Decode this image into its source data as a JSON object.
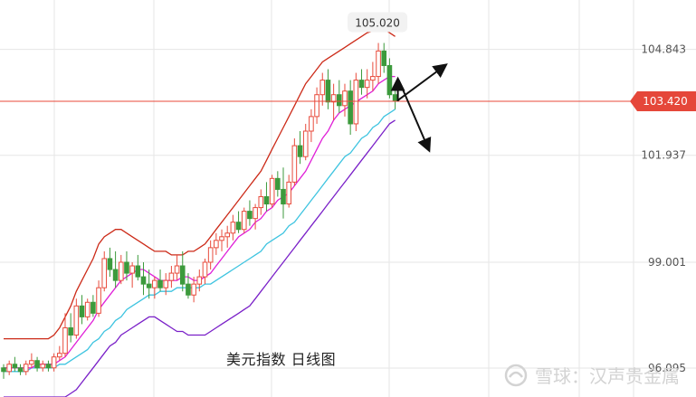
{
  "caption": "美元指数  日线图",
  "watermark_text": "雪球：汉声贵金属",
  "colors": {
    "up": "#e84b3c",
    "down": "#3c9a3c",
    "price_line": "#e8483a",
    "price_tag_bg": "#e5473a",
    "ma_fast": "#e020d8",
    "ma_slow": "#3ec4e0",
    "boll_upper": "#cc2a18",
    "boll_lower": "#7a20c8",
    "grid": "#e6e6e6",
    "arrow": "#111111"
  },
  "chart_data": {
    "type": "candlestick",
    "title": "",
    "ylim": [
      95.3,
      106.2
    ],
    "y_ticks": [
      104.843,
      101.937,
      99.001,
      96.095
    ],
    "current_price": 103.42,
    "high_label": 105.02,
    "candles": [
      [
        96.1,
        96.2,
        95.8,
        96.0
      ],
      [
        96.0,
        96.3,
        95.9,
        96.2
      ],
      [
        96.2,
        96.4,
        96.0,
        96.1
      ],
      [
        96.1,
        96.2,
        95.9,
        96.0
      ],
      [
        96.0,
        96.3,
        95.9,
        96.2
      ],
      [
        96.2,
        96.5,
        96.1,
        96.3
      ],
      [
        96.3,
        96.4,
        96.0,
        96.1
      ],
      [
        96.1,
        96.3,
        96.0,
        96.2
      ],
      [
        96.2,
        96.3,
        96.0,
        96.1
      ],
      [
        96.1,
        96.5,
        96.0,
        96.4
      ],
      [
        96.4,
        96.7,
        96.3,
        96.5
      ],
      [
        96.5,
        97.6,
        96.4,
        97.2
      ],
      [
        97.2,
        97.6,
        96.8,
        97.0
      ],
      [
        97.0,
        98.0,
        96.9,
        97.8
      ],
      [
        97.8,
        98.1,
        97.3,
        97.5
      ],
      [
        97.5,
        98.0,
        97.4,
        97.9
      ],
      [
        97.9,
        98.1,
        97.5,
        97.6
      ],
      [
        97.6,
        98.5,
        97.5,
        98.3
      ],
      [
        98.3,
        99.3,
        98.2,
        99.1
      ],
      [
        99.1,
        99.4,
        98.6,
        98.8
      ],
      [
        98.8,
        99.3,
        98.3,
        98.5
      ],
      [
        98.5,
        99.2,
        98.4,
        99.0
      ],
      [
        99.0,
        99.3,
        98.5,
        98.7
      ],
      [
        98.7,
        99.0,
        98.3,
        98.9
      ],
      [
        98.9,
        99.2,
        98.5,
        98.6
      ],
      [
        98.6,
        99.0,
        98.1,
        98.4
      ],
      [
        98.4,
        98.8,
        98.0,
        98.3
      ],
      [
        98.3,
        98.6,
        98.0,
        98.5
      ],
      [
        98.5,
        98.8,
        98.2,
        98.3
      ],
      [
        98.3,
        98.7,
        98.1,
        98.5
      ],
      [
        98.5,
        98.9,
        98.3,
        98.7
      ],
      [
        98.7,
        99.2,
        98.5,
        98.9
      ],
      [
        98.9,
        99.3,
        98.2,
        98.4
      ],
      [
        98.4,
        98.7,
        98.0,
        98.1
      ],
      [
        98.1,
        98.6,
        97.9,
        98.4
      ],
      [
        98.4,
        98.8,
        98.2,
        98.6
      ],
      [
        98.6,
        99.1,
        98.4,
        99.0
      ],
      [
        99.0,
        99.6,
        98.8,
        99.4
      ],
      [
        99.4,
        99.8,
        99.2,
        99.6
      ],
      [
        99.6,
        99.9,
        99.3,
        99.7
      ],
      [
        99.7,
        100.0,
        99.4,
        99.8
      ],
      [
        99.8,
        100.3,
        99.6,
        100.1
      ],
      [
        100.1,
        100.4,
        99.8,
        99.9
      ],
      [
        99.9,
        100.5,
        99.8,
        100.4
      ],
      [
        100.4,
        100.7,
        100.0,
        100.2
      ],
      [
        100.2,
        100.6,
        99.9,
        100.5
      ],
      [
        100.5,
        101.0,
        100.3,
        100.8
      ],
      [
        100.8,
        101.2,
        100.4,
        100.6
      ],
      [
        100.6,
        101.4,
        100.5,
        101.3
      ],
      [
        101.3,
        101.5,
        100.8,
        101.0
      ],
      [
        101.0,
        101.6,
        100.2,
        100.6
      ],
      [
        100.6,
        101.4,
        100.5,
        101.2
      ],
      [
        101.2,
        102.4,
        101.1,
        102.2
      ],
      [
        102.2,
        102.6,
        101.7,
        101.9
      ],
      [
        101.9,
        102.8,
        101.8,
        102.6
      ],
      [
        102.6,
        103.2,
        102.3,
        103.0
      ],
      [
        103.0,
        103.8,
        102.8,
        103.6
      ],
      [
        103.6,
        104.2,
        103.3,
        104.0
      ],
      [
        104.0,
        104.3,
        103.2,
        103.4
      ],
      [
        103.4,
        103.9,
        102.9,
        103.6
      ],
      [
        103.6,
        104.0,
        103.1,
        103.3
      ],
      [
        103.3,
        103.9,
        103.0,
        103.7
      ],
      [
        103.7,
        104.0,
        102.5,
        102.8
      ],
      [
        102.8,
        104.2,
        102.6,
        104.0
      ],
      [
        104.0,
        104.3,
        103.6,
        103.8
      ],
      [
        103.8,
        104.3,
        103.5,
        104.0
      ],
      [
        104.0,
        104.5,
        103.7,
        104.1
      ],
      [
        104.1,
        105.02,
        103.9,
        104.8
      ],
      [
        104.8,
        105.02,
        104.2,
        104.4
      ],
      [
        104.4,
        104.6,
        103.5,
        103.6
      ],
      [
        103.6,
        103.8,
        103.2,
        103.42
      ]
    ],
    "ma_fast": [
      96.1,
      96.1,
      96.1,
      96.1,
      96.1,
      96.1,
      96.2,
      96.2,
      96.2,
      96.2,
      96.3,
      96.4,
      96.6,
      96.8,
      97.0,
      97.2,
      97.4,
      97.7,
      97.9,
      98.1,
      98.3,
      98.5,
      98.6,
      98.7,
      98.8,
      98.8,
      98.7,
      98.6,
      98.5,
      98.5,
      98.5,
      98.5,
      98.6,
      98.6,
      98.5,
      98.5,
      98.6,
      98.7,
      98.9,
      99.1,
      99.3,
      99.5,
      99.7,
      99.8,
      99.9,
      100.1,
      100.2,
      100.4,
      100.5,
      100.7,
      100.8,
      100.9,
      101.1,
      101.3,
      101.5,
      101.8,
      102.1,
      102.4,
      102.6,
      102.9,
      103.1,
      103.2,
      103.3,
      103.4,
      103.5,
      103.6,
      103.7,
      103.9,
      104.0,
      104.1,
      104.1
    ],
    "ma_slow": [
      96.0,
      96.0,
      96.0,
      96.0,
      96.0,
      96.1,
      96.1,
      96.1,
      96.1,
      96.1,
      96.2,
      96.2,
      96.3,
      96.4,
      96.5,
      96.6,
      96.8,
      96.9,
      97.1,
      97.2,
      97.4,
      97.5,
      97.7,
      97.8,
      97.9,
      98.0,
      98.1,
      98.1,
      98.2,
      98.2,
      98.2,
      98.3,
      98.3,
      98.3,
      98.3,
      98.3,
      98.4,
      98.4,
      98.5,
      98.6,
      98.7,
      98.8,
      98.9,
      99.0,
      99.1,
      99.2,
      99.3,
      99.5,
      99.6,
      99.7,
      99.8,
      100.0,
      100.1,
      100.3,
      100.5,
      100.7,
      100.9,
      101.1,
      101.3,
      101.5,
      101.7,
      101.9,
      102.0,
      102.2,
      102.4,
      102.5,
      102.7,
      102.8,
      103.0,
      103.1,
      103.2
    ],
    "boll_upper": [
      96.9,
      96.9,
      96.9,
      96.9,
      96.9,
      96.9,
      96.9,
      96.9,
      96.9,
      97.0,
      97.2,
      97.5,
      97.8,
      98.2,
      98.5,
      98.8,
      99.1,
      99.5,
      99.7,
      99.8,
      99.9,
      99.9,
      99.8,
      99.7,
      99.6,
      99.5,
      99.4,
      99.3,
      99.3,
      99.3,
      99.2,
      99.2,
      99.2,
      99.3,
      99.3,
      99.4,
      99.5,
      99.7,
      99.9,
      100.1,
      100.3,
      100.5,
      100.7,
      100.9,
      101.1,
      101.3,
      101.5,
      101.8,
      102.1,
      102.4,
      102.7,
      103.0,
      103.3,
      103.6,
      103.9,
      104.1,
      104.3,
      104.5,
      104.6,
      104.7,
      104.8,
      104.9,
      105.0,
      105.1,
      105.2,
      105.3,
      105.35,
      105.4,
      105.4,
      105.3,
      105.2
    ],
    "boll_lower": [
      95.3,
      95.3,
      95.3,
      95.3,
      95.3,
      95.3,
      95.3,
      95.3,
      95.3,
      95.3,
      95.3,
      95.3,
      95.4,
      95.5,
      95.7,
      95.9,
      96.1,
      96.3,
      96.5,
      96.7,
      96.8,
      97.0,
      97.1,
      97.2,
      97.3,
      97.4,
      97.5,
      97.5,
      97.4,
      97.3,
      97.2,
      97.1,
      97.1,
      97.0,
      97.0,
      97.0,
      97.0,
      97.1,
      97.2,
      97.3,
      97.4,
      97.5,
      97.6,
      97.7,
      97.8,
      98.0,
      98.2,
      98.4,
      98.6,
      98.8,
      99.0,
      99.2,
      99.4,
      99.6,
      99.8,
      100.0,
      100.2,
      100.4,
      100.6,
      100.8,
      101.0,
      101.2,
      101.4,
      101.6,
      101.8,
      102.0,
      102.2,
      102.4,
      102.6,
      102.8,
      102.9
    ]
  }
}
